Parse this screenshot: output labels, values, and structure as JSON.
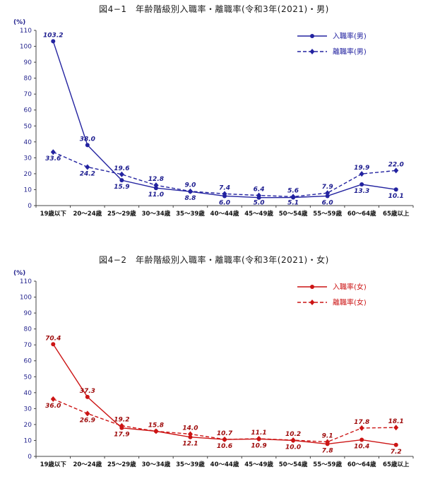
{
  "page": {
    "background": "#ffffff"
  },
  "chart_data": [
    {
      "type": "line",
      "title": "図4−1　年齢階級別入職率・離職率(令和3年(2021)・男)",
      "unit_label": "(%)",
      "ylim": [
        0,
        110
      ],
      "ytick_step": 10,
      "grid": false,
      "legend_position": "top-right",
      "color": "#2323a0",
      "label_color": "#1d1d8f",
      "axis_label_color": "#26268f",
      "xlabel_color": "#111111",
      "categories": [
        "19歳以下",
        "20〜24歳",
        "25〜29歳",
        "30〜34歳",
        "35〜39歳",
        "40〜44歳",
        "45〜49歳",
        "50〜54歳",
        "55〜59歳",
        "60〜64歳",
        "65歳以上"
      ],
      "series": [
        {
          "name": "入職率(男)",
          "line": "solid",
          "marker": "circle",
          "values": [
            103.2,
            38.0,
            15.9,
            11.0,
            8.8,
            6.0,
            5.0,
            5.1,
            6.0,
            13.3,
            10.1
          ],
          "labels": [
            "103.2",
            "38.0",
            "15.9",
            "11.0",
            "8.8",
            "6.0",
            "5.0",
            "5.1",
            "6.0",
            "13.3",
            "10.1"
          ],
          "label_pos": [
            "above",
            "above",
            "below",
            "below",
            "below",
            "below",
            "below",
            "below",
            "below",
            "below",
            "below"
          ]
        },
        {
          "name": "離職率(男)",
          "line": "dashed",
          "marker": "diamond",
          "values": [
            33.6,
            24.2,
            19.6,
            12.8,
            9.0,
            7.4,
            6.4,
            5.6,
            7.9,
            19.9,
            22.0
          ],
          "labels": [
            "33.6",
            "24.2",
            "19.6",
            "12.8",
            "9.0",
            "7.4",
            "6.4",
            "5.6",
            "7.9",
            "19.9",
            "22.0"
          ],
          "label_pos": [
            "below",
            "below",
            "above",
            "above",
            "above",
            "above",
            "above",
            "above",
            "above",
            "above",
            "above"
          ]
        }
      ]
    },
    {
      "type": "line",
      "title": "図4−2　年齢階級別入職率・離職率(令和3年(2021)・女)",
      "unit_label": "(%)",
      "ylim": [
        0,
        110
      ],
      "ytick_step": 10,
      "grid": false,
      "legend_position": "top-right",
      "color": "#cc1414",
      "label_color": "#9e0b0b",
      "axis_label_color": "#26268f",
      "xlabel_color": "#111111",
      "categories": [
        "19歳以下",
        "20〜24歳",
        "25〜29歳",
        "30〜34歳",
        "35〜39歳",
        "40〜44歳",
        "45〜49歳",
        "50〜54歳",
        "55〜59歳",
        "60〜64歳",
        "65歳以上"
      ],
      "series": [
        {
          "name": "入職率(女)",
          "line": "solid",
          "marker": "circle",
          "values": [
            70.4,
            37.3,
            17.9,
            15.8,
            12.1,
            10.6,
            10.9,
            10.0,
            7.8,
            10.4,
            7.2
          ],
          "labels": [
            "70.4",
            "37.3",
            "17.9",
            "15.8",
            "12.1",
            "10.6",
            "10.9",
            "10.0",
            "7.8",
            "10.4",
            "7.2"
          ],
          "label_pos": [
            "above",
            "above",
            "below",
            null,
            "below",
            "below",
            "below",
            "below",
            "below",
            "below",
            "below"
          ]
        },
        {
          "name": "離職率(女)",
          "line": "dashed",
          "marker": "diamond",
          "values": [
            36.0,
            26.9,
            19.2,
            15.8,
            14.0,
            10.7,
            11.1,
            10.2,
            9.1,
            17.8,
            18.1
          ],
          "labels": [
            "36.0",
            "26.9",
            "19.2",
            "15.8",
            "14.0",
            "10.7",
            "11.1",
            "10.2",
            "9.1",
            "17.8",
            "18.1"
          ],
          "label_pos": [
            "below",
            "below",
            "above",
            "above",
            "above",
            "above",
            "above",
            "above",
            "above",
            "above",
            "above"
          ]
        }
      ]
    }
  ]
}
